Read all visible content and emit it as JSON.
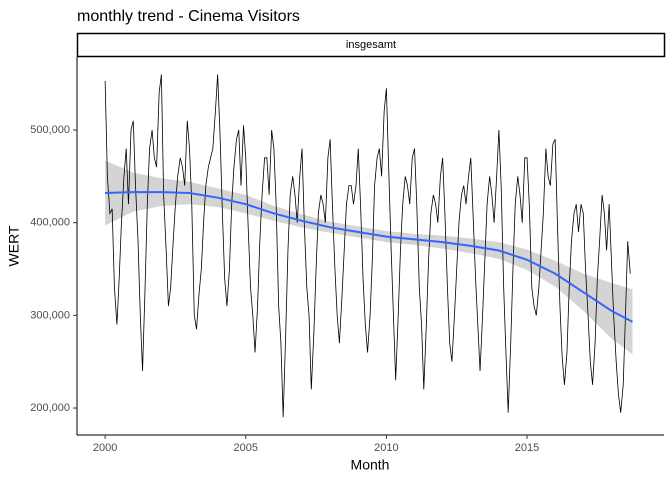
{
  "chart_data": {
    "type": "line",
    "title": "monthly trend - Cinema Visitors",
    "facet_label": "insgesamt",
    "x_label": "Month",
    "y_label": "WERT",
    "color": "#000000",
    "smooth_color": "#3366ff",
    "band_color": "#cccccc",
    "xlim": [
      1999.0,
      2019.87
    ],
    "ylim": [
      170900,
      578800
    ],
    "xticks": [
      2000,
      2005,
      2010,
      2015
    ],
    "yticks": [
      {
        "value": 200000,
        "label": "200,000"
      },
      {
        "value": 300000,
        "label": "300,000"
      },
      {
        "value": 400000,
        "label": "400,000"
      },
      {
        "value": 500000,
        "label": "500,000"
      }
    ],
    "x": [
      2000,
      2000.08,
      2000.17,
      2000.25,
      2000.33,
      2000.42,
      2000.5,
      2000.58,
      2000.67,
      2000.75,
      2000.83,
      2000.92,
      2001,
      2001.08,
      2001.17,
      2001.25,
      2001.33,
      2001.42,
      2001.5,
      2001.58,
      2001.67,
      2001.75,
      2001.83,
      2001.92,
      2002,
      2002.08,
      2002.17,
      2002.25,
      2002.33,
      2002.42,
      2002.5,
      2002.58,
      2002.67,
      2002.75,
      2002.83,
      2002.92,
      2003,
      2003.08,
      2003.17,
      2003.25,
      2003.33,
      2003.42,
      2003.5,
      2003.58,
      2003.67,
      2003.75,
      2003.83,
      2003.92,
      2004,
      2004.08,
      2004.17,
      2004.25,
      2004.33,
      2004.42,
      2004.5,
      2004.58,
      2004.67,
      2004.75,
      2004.83,
      2004.92,
      2005,
      2005.08,
      2005.17,
      2005.25,
      2005.33,
      2005.42,
      2005.5,
      2005.58,
      2005.67,
      2005.75,
      2005.83,
      2005.92,
      2006,
      2006.08,
      2006.17,
      2006.25,
      2006.33,
      2006.42,
      2006.5,
      2006.58,
      2006.67,
      2006.75,
      2006.83,
      2006.92,
      2007,
      2007.08,
      2007.17,
      2007.25,
      2007.33,
      2007.42,
      2007.5,
      2007.58,
      2007.67,
      2007.75,
      2007.83,
      2007.92,
      2008,
      2008.08,
      2008.17,
      2008.25,
      2008.33,
      2008.42,
      2008.5,
      2008.58,
      2008.67,
      2008.75,
      2008.83,
      2008.92,
      2009,
      2009.08,
      2009.17,
      2009.25,
      2009.33,
      2009.42,
      2009.5,
      2009.58,
      2009.67,
      2009.75,
      2009.83,
      2009.92,
      2010,
      2010.08,
      2010.17,
      2010.25,
      2010.33,
      2010.42,
      2010.5,
      2010.58,
      2010.67,
      2010.75,
      2010.83,
      2010.92,
      2011,
      2011.08,
      2011.17,
      2011.25,
      2011.33,
      2011.42,
      2011.5,
      2011.58,
      2011.67,
      2011.75,
      2011.83,
      2011.92,
      2012,
      2012.08,
      2012.17,
      2012.25,
      2012.33,
      2012.42,
      2012.5,
      2012.58,
      2012.67,
      2012.75,
      2012.83,
      2012.92,
      2013,
      2013.08,
      2013.17,
      2013.25,
      2013.33,
      2013.42,
      2013.5,
      2013.58,
      2013.67,
      2013.75,
      2013.83,
      2013.92,
      2014,
      2014.08,
      2014.17,
      2014.25,
      2014.33,
      2014.42,
      2014.5,
      2014.58,
      2014.67,
      2014.75,
      2014.83,
      2014.92,
      2015,
      2015.08,
      2015.17,
      2015.25,
      2015.33,
      2015.42,
      2015.5,
      2015.58,
      2015.67,
      2015.75,
      2015.83,
      2015.92,
      2016,
      2016.08,
      2016.17,
      2016.25,
      2016.33,
      2016.42,
      2016.5,
      2016.58,
      2016.67,
      2016.75,
      2016.83,
      2016.92,
      2017,
      2017.08,
      2017.17,
      2017.25,
      2017.33,
      2017.42,
      2017.5,
      2017.58,
      2017.67,
      2017.75,
      2017.83,
      2017.92,
      2018,
      2018.08,
      2018.17,
      2018.25,
      2018.33,
      2018.42,
      2018.5,
      2018.58,
      2018.67
    ],
    "values": [
      553000,
      450000,
      410000,
      415000,
      330000,
      290000,
      340000,
      400000,
      450000,
      480000,
      420000,
      500000,
      510000,
      440000,
      380000,
      300000,
      240000,
      330000,
      420000,
      480000,
      500000,
      470000,
      460000,
      540000,
      560000,
      430000,
      370000,
      310000,
      330000,
      380000,
      420000,
      450000,
      470000,
      460000,
      440000,
      510000,
      480000,
      420000,
      300000,
      285000,
      320000,
      350000,
      400000,
      440000,
      460000,
      470000,
      480000,
      520000,
      560000,
      500000,
      410000,
      340000,
      310000,
      350000,
      420000,
      460000,
      490000,
      500000,
      440000,
      505000,
      470000,
      400000,
      330000,
      300000,
      260000,
      310000,
      380000,
      430000,
      470000,
      470000,
      430000,
      500000,
      480000,
      420000,
      310000,
      270000,
      190000,
      280000,
      370000,
      430000,
      450000,
      430000,
      400000,
      450000,
      480000,
      400000,
      330000,
      300000,
      220000,
      280000,
      350000,
      410000,
      430000,
      420000,
      400000,
      470000,
      490000,
      420000,
      350000,
      300000,
      270000,
      320000,
      370000,
      420000,
      440000,
      440000,
      420000,
      440000,
      480000,
      420000,
      340000,
      290000,
      260000,
      300000,
      360000,
      440000,
      470000,
      480000,
      450000,
      520000,
      545000,
      460000,
      370000,
      300000,
      230000,
      300000,
      370000,
      420000,
      450000,
      440000,
      420000,
      470000,
      480000,
      420000,
      330000,
      290000,
      220000,
      290000,
      360000,
      410000,
      430000,
      420000,
      400000,
      450000,
      470000,
      410000,
      330000,
      270000,
      250000,
      300000,
      350000,
      400000,
      430000,
      440000,
      420000,
      450000,
      470000,
      410000,
      340000,
      290000,
      240000,
      300000,
      360000,
      420000,
      450000,
      430000,
      400000,
      450000,
      500000,
      440000,
      330000,
      260000,
      195000,
      270000,
      350000,
      420000,
      450000,
      430000,
      400000,
      470000,
      470000,
      420000,
      330000,
      310000,
      300000,
      330000,
      370000,
      410000,
      480000,
      450000,
      440000,
      485000,
      490000,
      400000,
      310000,
      255000,
      225000,
      260000,
      330000,
      380000,
      410000,
      420000,
      390000,
      420000,
      410000,
      350000,
      300000,
      250000,
      225000,
      270000,
      340000,
      380000,
      430000,
      410000,
      370000,
      420000,
      360000,
      300000,
      250000,
      215000,
      195000,
      225000,
      300000,
      380000,
      345000
    ],
    "smooth_x": [
      2000,
      2001,
      2002,
      2003,
      2004,
      2005,
      2006,
      2007,
      2008,
      2009,
      2010,
      2011,
      2012,
      2013,
      2014,
      2015,
      2016,
      2017,
      2018,
      2018.75
    ],
    "smooth_values": [
      432000,
      433000,
      433000,
      432000,
      427000,
      420000,
      410000,
      402000,
      395000,
      390000,
      385000,
      382000,
      379000,
      375000,
      370000,
      360000,
      345000,
      325000,
      305000,
      293000
    ],
    "smooth_lower": [
      397000,
      412000,
      418000,
      420000,
      417000,
      410000,
      402000,
      395000,
      389000,
      384000,
      379000,
      376000,
      372000,
      367000,
      361000,
      349000,
      331000,
      305000,
      275000,
      258000
    ],
    "smooth_upper": [
      467000,
      454000,
      448000,
      444000,
      437000,
      430000,
      418000,
      409000,
      401000,
      396000,
      391000,
      388000,
      386000,
      383000,
      379000,
      371000,
      359000,
      345000,
      335000,
      328000
    ]
  }
}
